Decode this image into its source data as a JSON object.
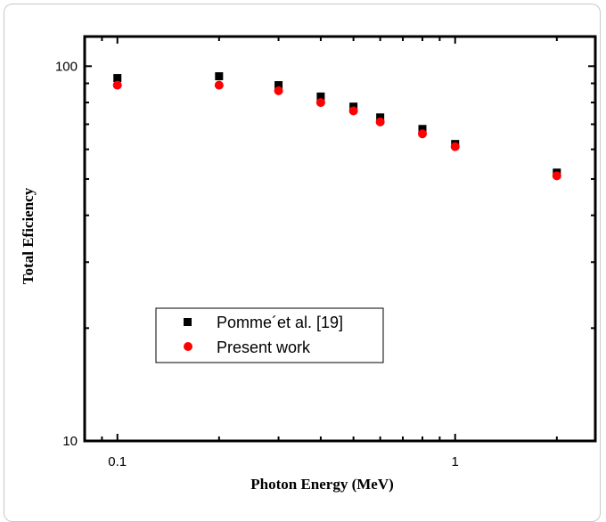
{
  "chart_data": {
    "type": "scatter",
    "xlabel": "Photon Energy (MeV)",
    "ylabel": "Total Eficiency",
    "xscale": "log",
    "yscale": "log",
    "xlim": [
      0.08,
      2.6
    ],
    "ylim": [
      10,
      120
    ],
    "x_ticks": [
      {
        "value": 0.1,
        "label": "0.1"
      },
      {
        "value": 1,
        "label": "1"
      }
    ],
    "y_ticks": [
      {
        "value": 10,
        "label": "10"
      },
      {
        "value": 100,
        "label": "100"
      }
    ],
    "grid": false,
    "legend_position": "lower-left",
    "series": [
      {
        "name": "Pomme´et al. [19]",
        "marker": "square",
        "color": "#000000",
        "x": [
          0.1,
          0.2,
          0.3,
          0.4,
          0.5,
          0.6,
          0.8,
          1.0,
          2.0
        ],
        "y": [
          93,
          94,
          89,
          83,
          78,
          73,
          68,
          62,
          52
        ]
      },
      {
        "name": "Present work",
        "marker": "circle",
        "color": "#ff0000",
        "x": [
          0.1,
          0.2,
          0.3,
          0.4,
          0.5,
          0.6,
          0.8,
          1.0,
          2.0
        ],
        "y": [
          89,
          89,
          86,
          80,
          76,
          71,
          66,
          61,
          51
        ]
      }
    ]
  }
}
